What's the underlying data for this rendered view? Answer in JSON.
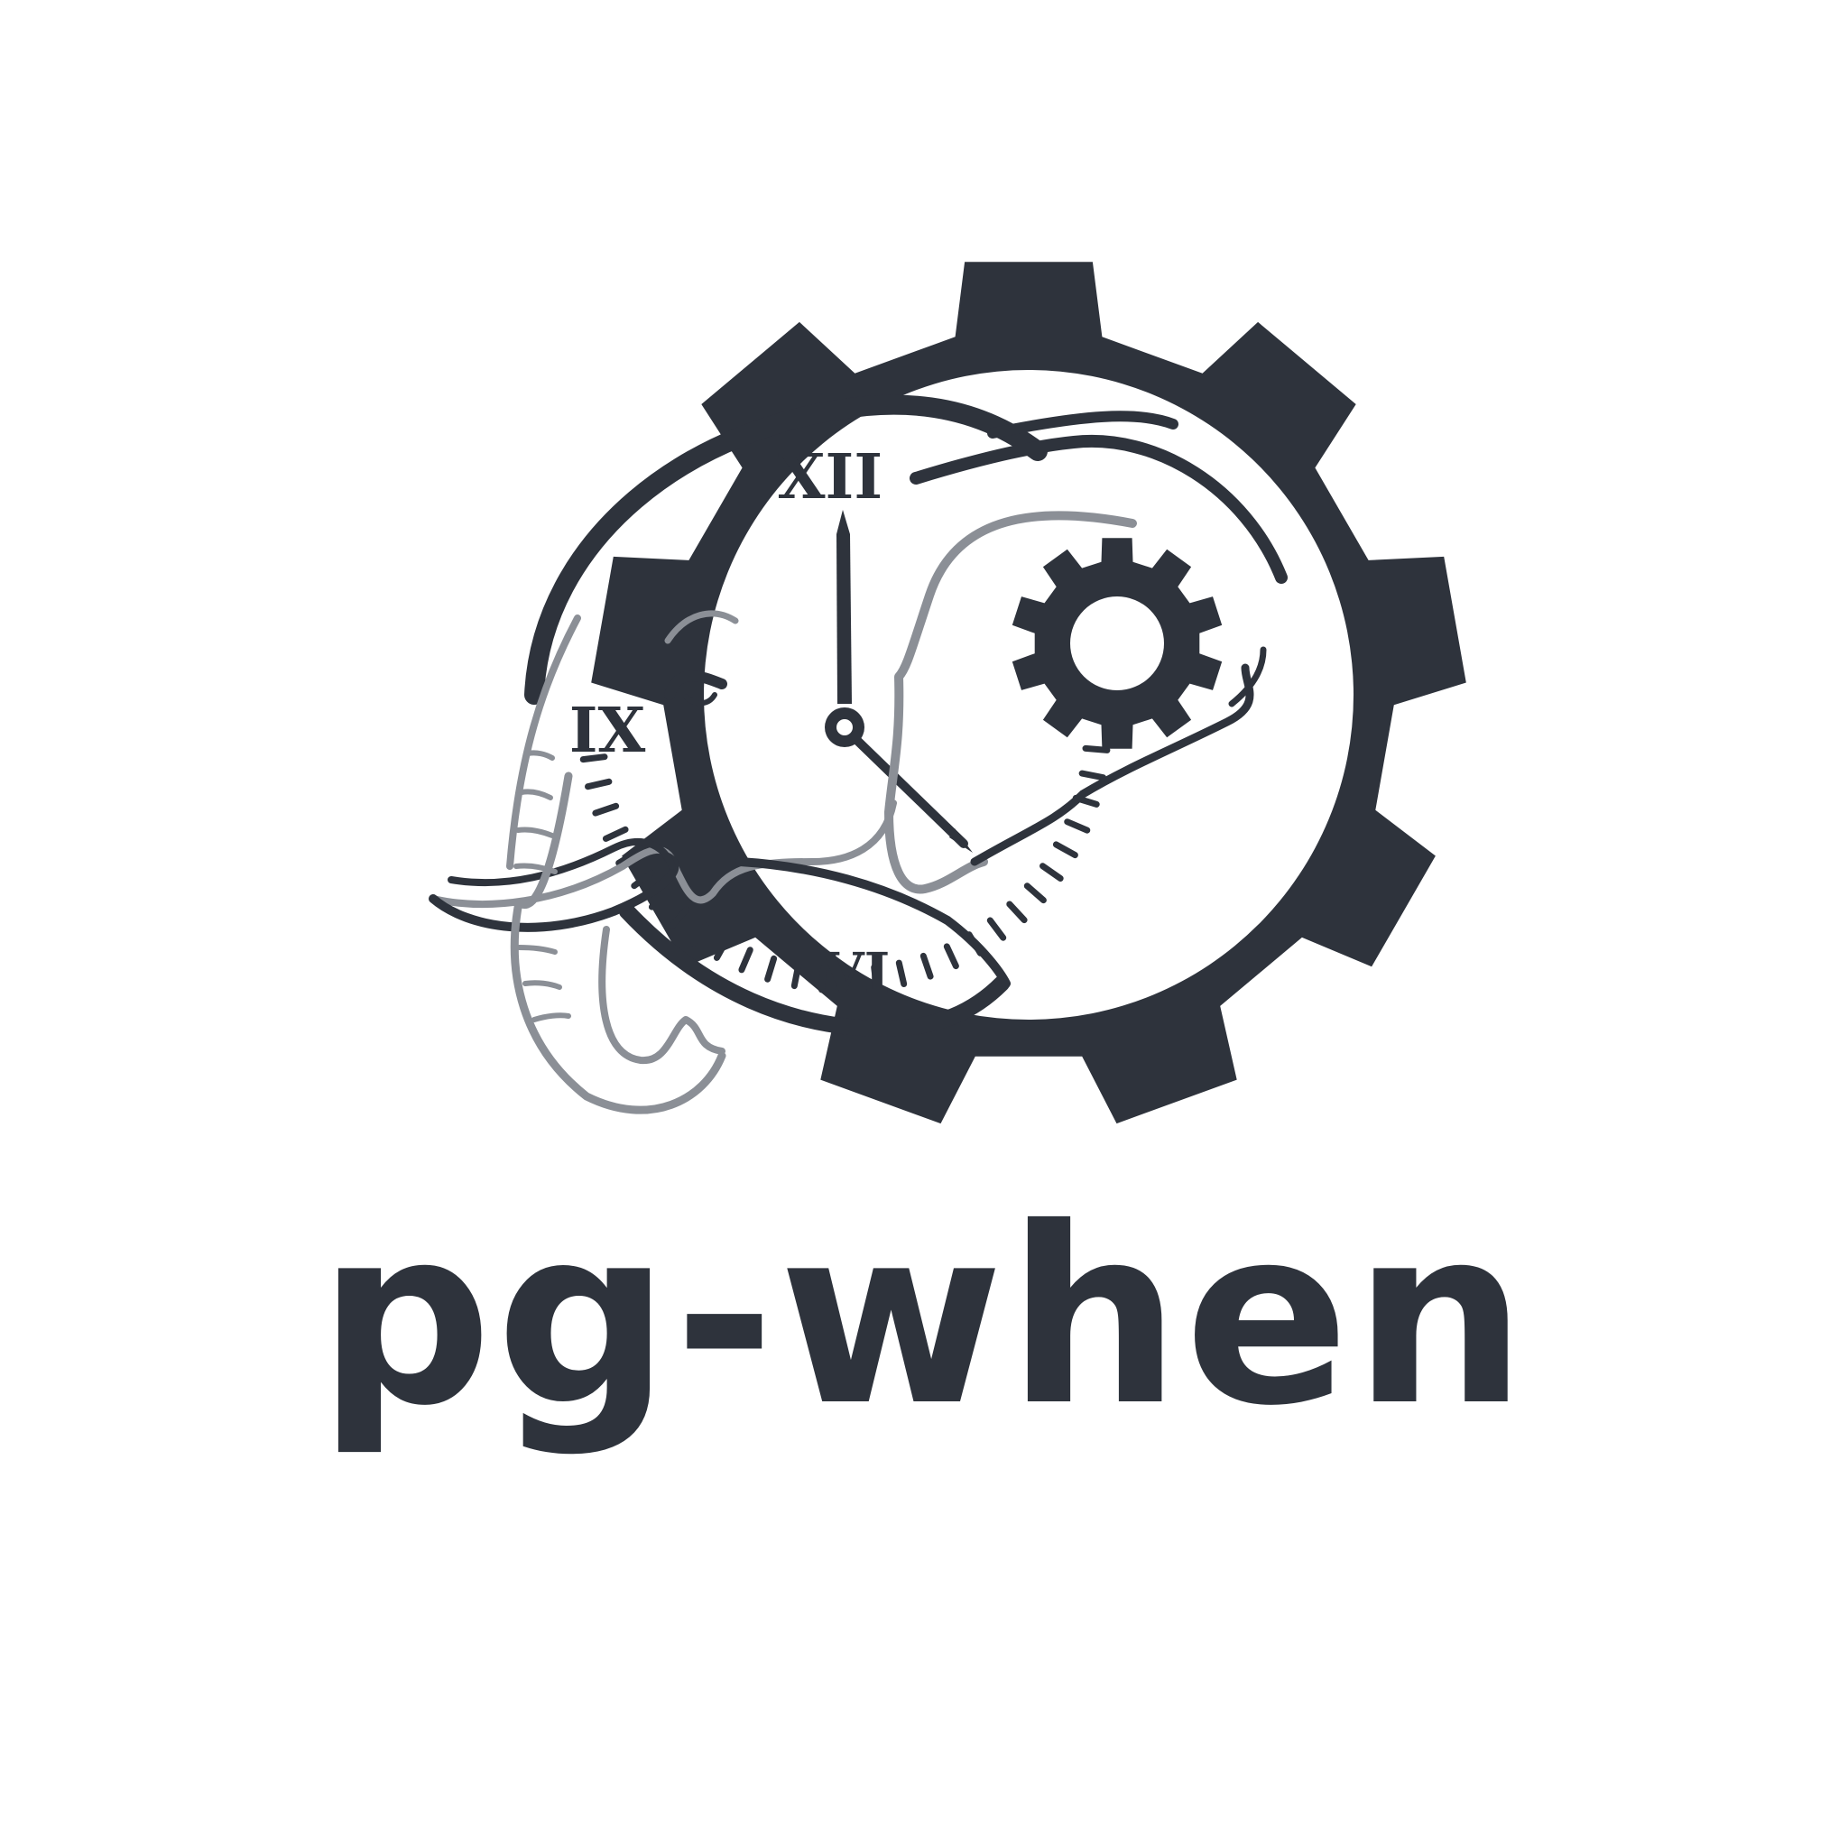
{
  "wordmark": "pg-when",
  "clock_numerals": {
    "twelve": "XII",
    "nine": "IX",
    "six": "VI"
  },
  "icons": {
    "outer_gear": "gear-icon",
    "inner_gear": "small-gear-icon",
    "elephant": "elephant-icon",
    "clock": "clock-icon"
  },
  "colors": {
    "primary": "#2e333c",
    "secondary": "#8b8f96",
    "background": "#ffffff"
  }
}
